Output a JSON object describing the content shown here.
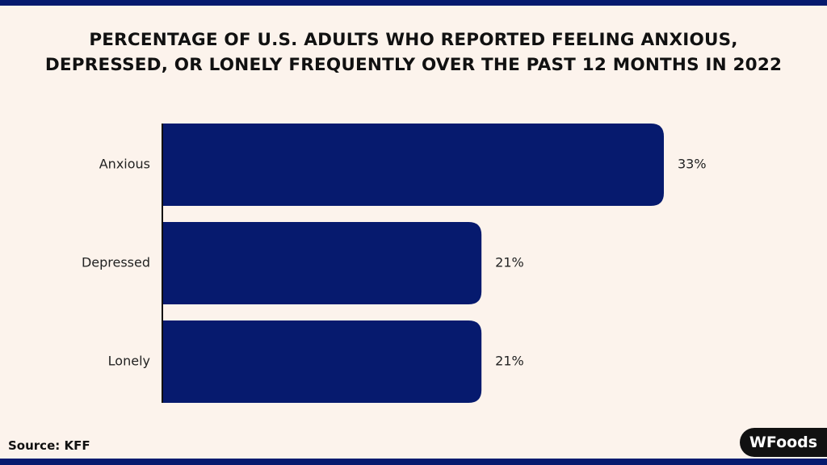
{
  "chart_data": {
    "type": "bar",
    "orientation": "horizontal",
    "title": "PERCENTAGE OF U.S. ADULTS WHO REPORTED FEELING ANXIOUS, DEPRESSED, OR LONELY FREQUENTLY OVER THE PAST 12 MONTHS IN 2022",
    "categories": [
      "Anxious",
      "Depressed",
      "Lonely"
    ],
    "values": [
      33,
      21,
      21
    ],
    "value_labels": [
      "33%",
      "21%",
      "21%"
    ],
    "color": "#061a6e"
  },
  "source": "Source: KFF",
  "logo": "WFoods"
}
